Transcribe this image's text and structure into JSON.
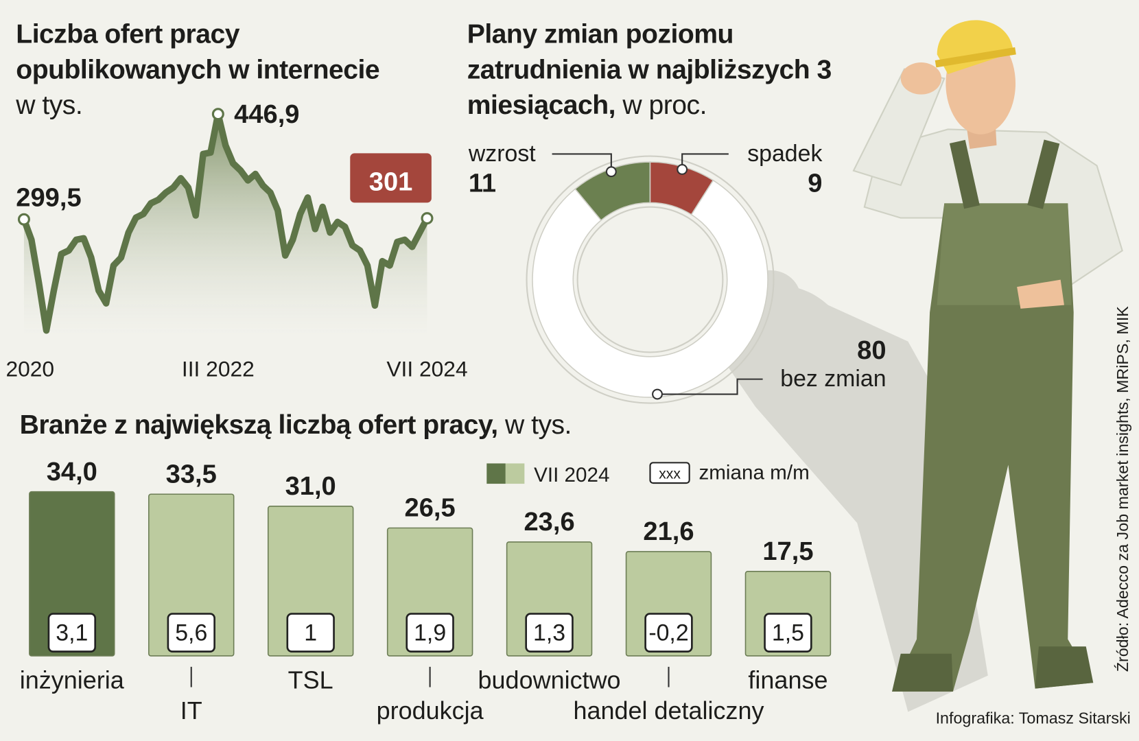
{
  "chart_data": [
    {
      "type": "line",
      "title": "Liczba ofert pracy opublikowanych w internecie",
      "unit": "w tys.",
      "categories": [
        "I 2020",
        null,
        null,
        null,
        null,
        null,
        null,
        null,
        null,
        null,
        null,
        null,
        null,
        null,
        null,
        null,
        null,
        null,
        null,
        null,
        null,
        null,
        null,
        null,
        null,
        null,
        "III 2022",
        null,
        null,
        null,
        null,
        null,
        null,
        null,
        null,
        null,
        null,
        null,
        null,
        null,
        null,
        null,
        null,
        null,
        null,
        null,
        null,
        null,
        null,
        null,
        null,
        null,
        null,
        null,
        "VII 2024"
      ],
      "color": "#5e7548",
      "values": [
        299.5,
        271,
        210,
        144,
        200,
        251,
        256,
        271,
        273,
        246,
        200,
        182,
        235,
        246,
        281,
        302,
        307,
        322,
        327,
        337,
        344,
        357,
        344,
        305,
        391,
        393,
        446.9,
        403,
        378,
        368,
        354,
        363,
        347,
        337,
        312,
        249,
        271,
        307,
        330,
        286,
        317,
        281,
        296,
        289,
        263,
        256,
        235,
        179,
        241,
        235,
        268,
        271,
        261,
        281,
        301
      ],
      "value_labels": [
        "299,5",
        null,
        null,
        null,
        null,
        null,
        null,
        null,
        null,
        null,
        null,
        null,
        null,
        null,
        null,
        null,
        null,
        null,
        null,
        null,
        null,
        null,
        null,
        null,
        null,
        null,
        "446,9",
        null,
        null,
        null,
        null,
        null,
        null,
        null,
        null,
        null,
        null,
        null,
        null,
        null,
        null,
        null,
        null,
        null,
        null,
        null,
        null,
        null,
        null,
        null,
        null,
        null,
        null,
        null,
        "301"
      ]
    },
    {
      "type": "donut",
      "title": "Plany zmian poziomu zatrudnienia w najbliższych 3 miesiącach,",
      "unit": "w proc.",
      "categories": [
        "wzrost",
        "spadek",
        "bez zmian"
      ],
      "values": [
        11,
        9,
        80
      ],
      "colors": [
        "#6b8050",
        "#a4463c",
        "#ffffff"
      ]
    },
    {
      "type": "bar",
      "title": "Branże z największą liczbą ofert pracy,",
      "unit": "w tys.",
      "categories": [
        "inżynieria",
        "IT",
        "TSL",
        "produkcja",
        "budownictwo",
        "handel detaliczny",
        "finanse"
      ],
      "series": [
        {
          "name": "VII 2024",
          "color": "#bccb9f",
          "highlight_color": "#5f7548",
          "values": [
            34.0,
            33.5,
            31.0,
            26.5,
            23.6,
            21.6,
            17.5
          ],
          "value_labels": [
            "34,0",
            "33,5",
            "31,0",
            "26,5",
            "23,6",
            "21,6",
            "17,5"
          ]
        },
        {
          "name": "zmiana m/m",
          "symbol": "xxx",
          "values": [
            3.1,
            5.6,
            1,
            1.9,
            1.3,
            -0.2,
            1.5
          ],
          "value_labels": [
            "3,1",
            "5,6",
            "1",
            "1,9",
            "1,3",
            "-0,2",
            "1,5"
          ]
        }
      ]
    }
  ],
  "source": "Źródło: Adecco za Job market insights, MRiPS, MIK",
  "credit": "Infografika: Tomasz Sitarski"
}
